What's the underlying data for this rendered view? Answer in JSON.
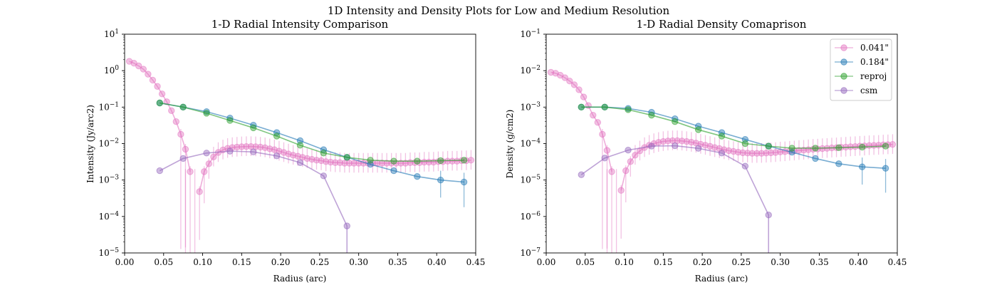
{
  "figure": {
    "suptitle": "1D Intensity and Density Plots for Low and Medium Resolution"
  },
  "legend": {
    "placement": "top-right",
    "entries": [
      "0.041\"",
      "0.184\"",
      "reproj",
      "csm"
    ]
  },
  "colors": {
    "0.041": "#e377c2",
    "0.184": "#1f77b4",
    "reproj": "#2ca02c",
    "csm": "#9467bd"
  },
  "chart_data": [
    {
      "type": "line",
      "title": "1-D Radial Intensity Comparison",
      "xlabel": "Radius (arc)",
      "ylabel": "Intensity (Jy/arc2)",
      "xlim": [
        0.0,
        0.45
      ],
      "ylim": [
        1e-05,
        10
      ],
      "yscale": "log",
      "grid": false,
      "x_ticks": [
        "0.00",
        "0.05",
        "0.10",
        "0.15",
        "0.20",
        "0.25",
        "0.30",
        "0.35",
        "0.40",
        "0.45"
      ],
      "y_ticks": [
        {
          "mant": "10",
          "exp": "−5"
        },
        {
          "mant": "10",
          "exp": "−4"
        },
        {
          "mant": "10",
          "exp": "−3"
        },
        {
          "mant": "10",
          "exp": "−2"
        },
        {
          "mant": "10",
          "exp": "−1"
        },
        {
          "mant": "10",
          "exp": "0"
        },
        {
          "mant": "10",
          "exp": "1"
        }
      ],
      "series": [
        {
          "key": "0.041",
          "x": [
            0.006,
            0.012,
            0.018,
            0.024,
            0.03,
            0.036,
            0.042,
            0.048,
            0.054,
            0.06,
            0.066,
            0.072,
            0.078,
            0.084,
            0.09,
            0.096,
            0.102,
            0.108,
            0.114,
            0.12,
            0.126,
            0.132,
            0.138,
            0.144,
            0.15,
            0.156,
            0.162,
            0.168,
            0.174,
            0.18,
            0.186,
            0.192,
            0.198,
            0.204,
            0.21,
            0.216,
            0.222,
            0.228,
            0.234,
            0.24,
            0.246,
            0.252,
            0.258,
            0.264,
            0.27,
            0.276,
            0.282,
            0.288,
            0.294,
            0.3,
            0.306,
            0.312,
            0.318,
            0.324,
            0.33,
            0.336,
            0.342,
            0.348,
            0.354,
            0.36,
            0.366,
            0.372,
            0.378,
            0.384,
            0.39,
            0.396,
            0.402,
            0.408,
            0.414,
            0.42,
            0.426,
            0.432,
            0.438,
            0.444
          ],
          "y": [
            1.8,
            1.6,
            1.35,
            1.1,
            0.8,
            0.55,
            0.37,
            0.23,
            0.14,
            0.08,
            0.04,
            0.018,
            0.007,
            0.0017,
            null,
            0.00048,
            0.0017,
            0.0028,
            0.0043,
            0.0057,
            0.0067,
            0.0074,
            0.0078,
            0.008,
            0.0082,
            0.0083,
            0.0083,
            0.0082,
            0.008,
            0.0077,
            0.0072,
            0.0068,
            0.0062,
            0.0057,
            0.0052,
            0.0048,
            0.0045,
            0.0042,
            0.0039,
            0.0037,
            0.0035,
            0.0034,
            0.0032,
            0.0031,
            0.003,
            0.003,
            0.0029,
            0.0029,
            0.0029,
            0.0029,
            0.0029,
            0.0029,
            0.0029,
            0.0029,
            0.0029,
            0.0029,
            0.0029,
            0.0029,
            0.0029,
            0.0029,
            0.003,
            0.003,
            0.003,
            0.0031,
            0.0031,
            0.0031,
            0.0032,
            0.0032,
            0.0033,
            0.0033,
            0.0033,
            0.0034,
            0.0034,
            0.0035
          ]
        },
        {
          "key": "0.184",
          "x": [
            0.045,
            0.075,
            0.105,
            0.135,
            0.165,
            0.195,
            0.225,
            0.255,
            0.285,
            0.315,
            0.345,
            0.375,
            0.405,
            0.435
          ],
          "y": [
            0.13,
            0.1,
            0.075,
            0.05,
            0.032,
            0.02,
            0.012,
            0.0068,
            0.0042,
            0.0027,
            0.0018,
            0.00125,
            0.001,
            0.00088
          ],
          "err_low": [
            null,
            null,
            null,
            null,
            null,
            null,
            null,
            null,
            null,
            null,
            null,
            null,
            0.00033,
            0.00018
          ]
        },
        {
          "key": "reproj",
          "x": [
            0.045,
            0.075,
            0.105,
            0.135,
            0.165,
            0.195,
            0.225,
            0.255,
            0.285,
            0.315,
            0.345,
            0.375,
            0.405,
            0.435
          ],
          "y": [
            0.13,
            0.1,
            0.068,
            0.043,
            0.027,
            0.016,
            0.009,
            0.0055,
            0.0042,
            0.0035,
            0.0033,
            0.0033,
            0.0034,
            0.0035
          ]
        },
        {
          "key": "csm",
          "x": [
            0.045,
            0.075,
            0.105,
            0.135,
            0.165,
            0.195,
            0.225,
            0.255,
            0.285
          ],
          "y": [
            0.0018,
            0.0039,
            0.0055,
            0.0062,
            0.0059,
            0.0046,
            0.003,
            0.0013,
            5.5e-05
          ]
        }
      ]
    },
    {
      "type": "line",
      "title": "1-D Radial Density Comaprison",
      "xlabel": "Radius (arc)",
      "ylabel": "Density (g/cm2)",
      "xlim": [
        0.0,
        0.45
      ],
      "ylim": [
        1e-07,
        0.1
      ],
      "yscale": "log",
      "grid": false,
      "x_ticks": [
        "0.00",
        "0.05",
        "0.10",
        "0.15",
        "0.20",
        "0.25",
        "0.30",
        "0.35",
        "0.40",
        "0.45"
      ],
      "y_ticks": [
        {
          "mant": "10",
          "exp": "−7"
        },
        {
          "mant": "10",
          "exp": "−6"
        },
        {
          "mant": "10",
          "exp": "−5"
        },
        {
          "mant": "10",
          "exp": "−4"
        },
        {
          "mant": "10",
          "exp": "−3"
        },
        {
          "mant": "10",
          "exp": "−2"
        },
        {
          "mant": "10",
          "exp": "−1"
        }
      ],
      "series": [
        {
          "key": "0.041",
          "x": [
            0.006,
            0.012,
            0.018,
            0.024,
            0.03,
            0.036,
            0.042,
            0.048,
            0.054,
            0.06,
            0.066,
            0.072,
            0.078,
            0.084,
            0.09,
            0.096,
            0.102,
            0.108,
            0.114,
            0.12,
            0.126,
            0.132,
            0.138,
            0.144,
            0.15,
            0.156,
            0.162,
            0.168,
            0.174,
            0.18,
            0.186,
            0.192,
            0.198,
            0.204,
            0.21,
            0.216,
            0.222,
            0.228,
            0.234,
            0.24,
            0.246,
            0.252,
            0.258,
            0.264,
            0.27,
            0.276,
            0.282,
            0.288,
            0.294,
            0.3,
            0.306,
            0.312,
            0.318,
            0.324,
            0.33,
            0.336,
            0.342,
            0.348,
            0.354,
            0.36,
            0.366,
            0.372,
            0.378,
            0.384,
            0.39,
            0.396,
            0.402,
            0.408,
            0.414,
            0.42,
            0.426,
            0.432,
            0.438,
            0.444
          ],
          "y": [
            0.009,
            0.0085,
            0.0075,
            0.0064,
            0.0052,
            0.0041,
            0.003,
            0.0019,
            0.0011,
            0.0006,
            0.00038,
            0.00018,
            6.5e-05,
            1.7e-05,
            null,
            5.2e-06,
            1.8e-05,
            3.2e-05,
            4.8e-05,
            6.3e-05,
            7.8e-05,
            9e-05,
            0.0001,
            0.000108,
            0.000114,
            0.000118,
            0.00012,
            0.00012,
            0.000118,
            0.000114,
            0.000109,
            0.000103,
            9.6e-05,
            9e-05,
            8.4e-05,
            7.8e-05,
            7.3e-05,
            6.8e-05,
            6.4e-05,
            6.1e-05,
            5.8e-05,
            5.6e-05,
            5.5e-05,
            5.4e-05,
            5.4e-05,
            5.4e-05,
            5.5e-05,
            5.6e-05,
            5.7e-05,
            5.9e-05,
            6e-05,
            6.2e-05,
            6.3e-05,
            6.5e-05,
            6.6e-05,
            6.8e-05,
            7e-05,
            7.1e-05,
            7.3e-05,
            7.4e-05,
            7.6e-05,
            7.7e-05,
            7.9e-05,
            8e-05,
            8.2e-05,
            8.3e-05,
            8.5e-05,
            8.6e-05,
            8.8e-05,
            8.9e-05,
            9e-05,
            9.2e-05,
            9.3e-05,
            9.5e-05
          ]
        },
        {
          "key": "0.184",
          "x": [
            0.045,
            0.075,
            0.105,
            0.135,
            0.165,
            0.195,
            0.225,
            0.255,
            0.285,
            0.315,
            0.345,
            0.375,
            0.405,
            0.435
          ],
          "y": [
            0.001,
            0.001,
            0.00092,
            0.00072,
            0.00048,
            0.0003,
            0.0002,
            0.00013,
            8.5e-05,
            5.8e-05,
            3.9e-05,
            2.8e-05,
            2.3e-05,
            2.1e-05
          ],
          "err_low": [
            null,
            null,
            null,
            null,
            null,
            null,
            null,
            null,
            null,
            null,
            null,
            null,
            7.5e-06,
            4.5e-06
          ]
        },
        {
          "key": "reproj",
          "x": [
            0.045,
            0.075,
            0.105,
            0.135,
            0.165,
            0.195,
            0.225,
            0.255,
            0.285,
            0.315,
            0.345,
            0.375,
            0.405,
            0.435
          ],
          "y": [
            0.001,
            0.001,
            0.00085,
            0.0006,
            0.0004,
            0.00024,
            0.00016,
            0.0001,
            8.5e-05,
            7.5e-05,
            7.5e-05,
            7.7e-05,
            8e-05,
            8.5e-05
          ]
        },
        {
          "key": "csm",
          "x": [
            0.045,
            0.075,
            0.105,
            0.135,
            0.165,
            0.195,
            0.225,
            0.255,
            0.285
          ],
          "y": [
            1.4e-05,
            4e-05,
            6.6e-05,
            8.5e-05,
            8.7e-05,
            7.4e-05,
            5.5e-05,
            2.4e-05,
            1.1e-06
          ]
        }
      ]
    }
  ]
}
